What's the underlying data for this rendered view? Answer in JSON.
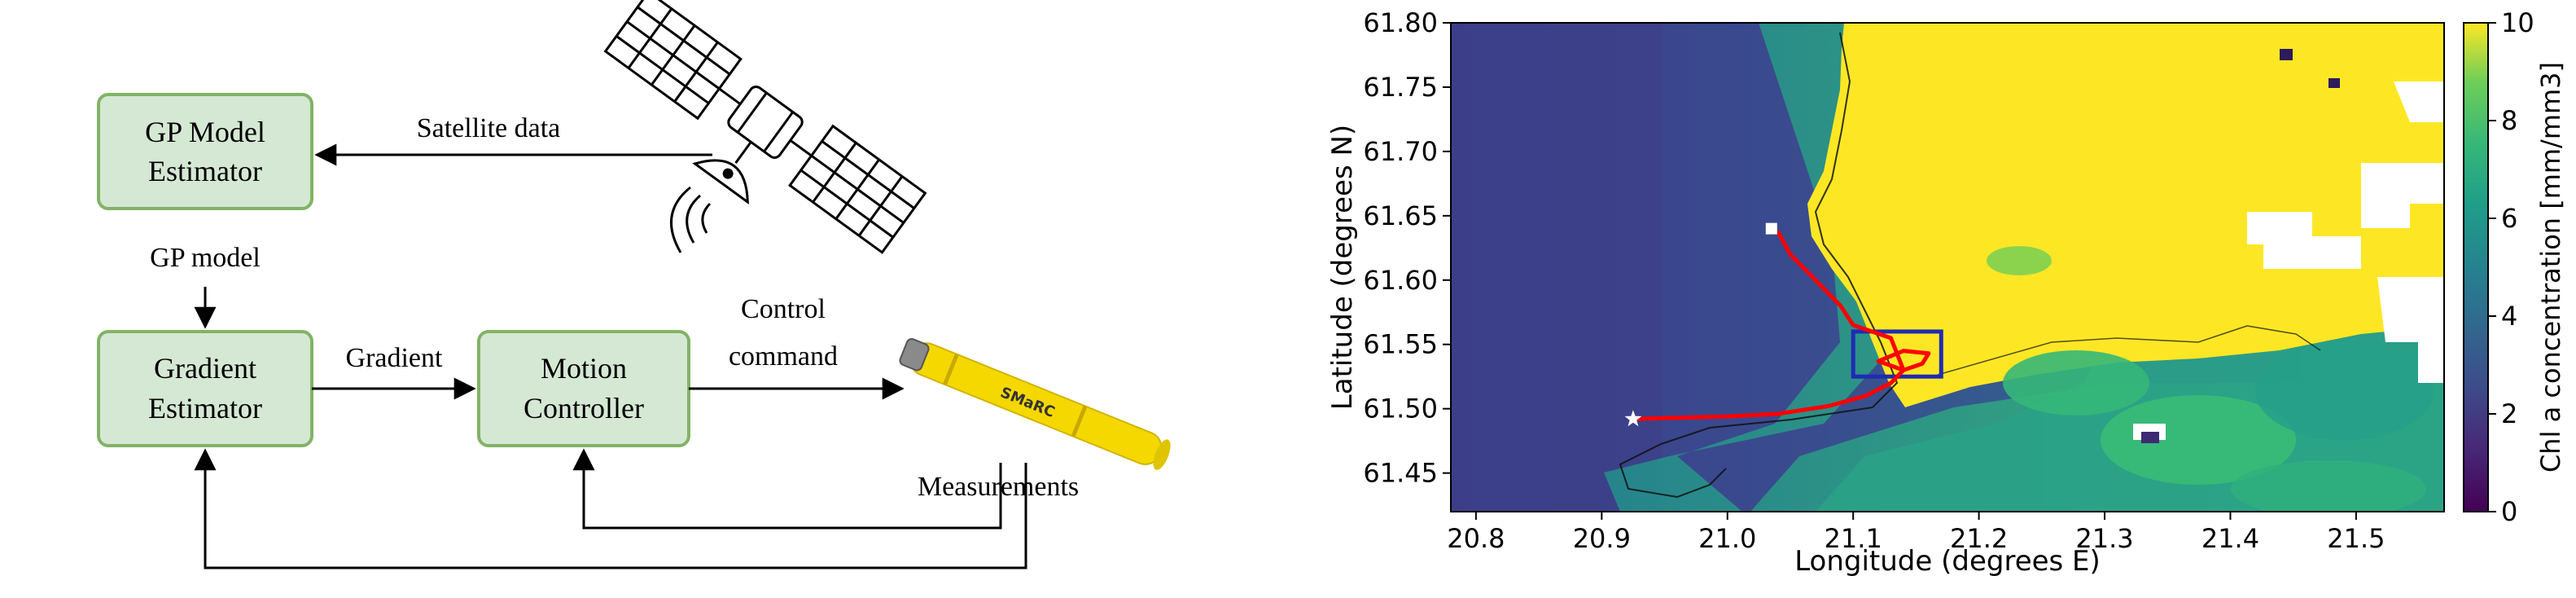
{
  "diagram": {
    "blocks": {
      "gp_estimator": [
        "GP Model",
        "Estimator"
      ],
      "gradient_estimator": [
        "Gradient",
        "Estimator"
      ],
      "motion_controller": [
        "Motion",
        "Controller"
      ]
    },
    "edge_labels": {
      "satellite_data": "Satellite data",
      "gp_model": "GP model",
      "gradient": "Gradient",
      "control_command": [
        "Control",
        "command"
      ],
      "measurements": "Measurements"
    },
    "vehicle_label": "SMaRC",
    "colors": {
      "block_fill": "#d5e8d4",
      "block_border": "#82b366",
      "vehicle_yellow": "#f5d800"
    }
  },
  "chart_data": {
    "type": "heatmap",
    "xlabel": "Longitude (degrees E)",
    "ylabel": "Latitude (degrees N)",
    "xlim": [
      20.78,
      21.57
    ],
    "ylim": [
      61.42,
      61.8
    ],
    "xticks": [
      "20.8",
      "20.9",
      "21.0",
      "21.1",
      "21.2",
      "21.3",
      "21.4",
      "21.5"
    ],
    "yticks": [
      "61.45",
      "61.50",
      "61.55",
      "61.60",
      "61.65",
      "61.70",
      "61.75",
      "61.80"
    ],
    "colorbar": {
      "label": "Chl a concentration [mm/mm3]",
      "range": [
        0,
        10
      ],
      "ticks": [
        "0",
        "2",
        "4",
        "6",
        "8",
        "10"
      ],
      "colormap": "viridis"
    },
    "trajectory": {
      "color": "#ff0000",
      "points": [
        [
          20.925,
          61.492
        ],
        [
          20.96,
          61.493
        ],
        [
          21.0,
          61.494
        ],
        [
          21.04,
          61.496
        ],
        [
          21.08,
          61.502
        ],
        [
          21.11,
          61.51
        ],
        [
          21.13,
          61.52
        ],
        [
          21.14,
          61.53
        ],
        [
          21.12,
          61.537
        ],
        [
          21.14,
          61.545
        ],
        [
          21.16,
          61.543
        ],
        [
          21.155,
          61.535
        ],
        [
          21.14,
          61.53
        ],
        [
          21.13,
          61.555
        ],
        [
          21.1,
          61.565
        ],
        [
          21.09,
          61.58
        ],
        [
          21.07,
          61.6
        ],
        [
          21.05,
          61.62
        ],
        [
          21.04,
          61.638
        ]
      ]
    },
    "start_marker": {
      "shape": "star",
      "lon": 20.925,
      "lat": 61.492
    },
    "end_marker": {
      "shape": "square",
      "lon": 21.035,
      "lat": 61.64
    },
    "highlight_box": {
      "color": "#1f2bb5",
      "lon": [
        21.1,
        21.17
      ],
      "lat": [
        61.525,
        61.56
      ]
    }
  }
}
